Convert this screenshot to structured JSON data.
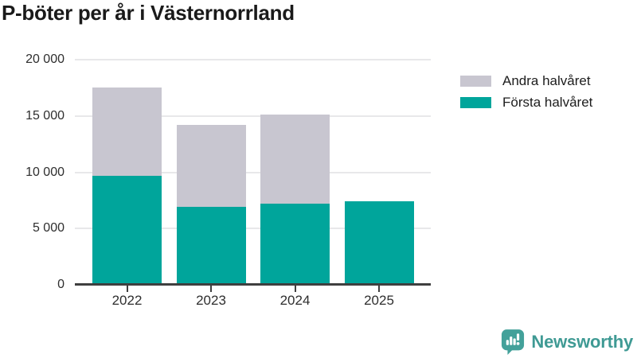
{
  "title": "P-böter per år i Västernorrland",
  "legend": {
    "items": [
      {
        "label": "Andra halvåret",
        "color": "#c8c6d0"
      },
      {
        "label": "Första halvåret",
        "color": "#00a59b"
      }
    ]
  },
  "chart_data": {
    "type": "bar",
    "stacked": true,
    "title": "P-böter per år i Västernorrland",
    "categories": [
      "2022",
      "2023",
      "2024",
      "2025"
    ],
    "series": [
      {
        "name": "Första halvåret",
        "color": "#00a59b",
        "values": [
          9700,
          6900,
          7200,
          7400
        ]
      },
      {
        "name": "Andra halvåret",
        "color": "#c8c6d0",
        "values": [
          7800,
          7300,
          7900,
          0
        ]
      }
    ],
    "totals": [
      17500,
      14200,
      15100,
      7400
    ],
    "xlabel": "",
    "ylabel": "",
    "ylim": [
      0,
      20000
    ],
    "yticks": [
      0,
      5000,
      10000,
      15000,
      20000
    ],
    "ytick_labels": [
      "0",
      "5 000",
      "10 000",
      "15 000",
      "20 000"
    ],
    "grid": true,
    "gridline_color": "#e8e8ea",
    "axis_color": "#3f3f3f",
    "legend_position": "right-top"
  },
  "footer": {
    "brand": "Newsworthy",
    "brand_color": "#3f9a94"
  }
}
